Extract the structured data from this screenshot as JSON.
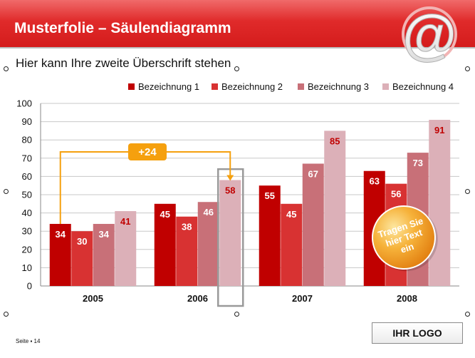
{
  "slide": {
    "title": "Musterfolie – Säulendiagramm",
    "subtitle": "Hier kann Ihre zweite Überschrift stehen",
    "footer": "Seite ▪ 14",
    "logo": "IHR LOGO",
    "badge_text": [
      "Tragen Sie",
      "hier Text",
      "ein"
    ],
    "callout": "+24",
    "icon": "at-sign-icon"
  },
  "colors": {
    "banner": "#e0262a",
    "series": [
      "#c00000",
      "#d83232",
      "#c87078",
      "#dcb0b8"
    ],
    "callout": "#f5a00e"
  },
  "chart_data": {
    "type": "bar",
    "categories": [
      "2005",
      "2006",
      "2007",
      "2008"
    ],
    "series": [
      {
        "name": "Bezeichnung 1",
        "values": [
          34,
          45,
          55,
          63
        ]
      },
      {
        "name": "Bezeichnung 2",
        "values": [
          30,
          38,
          45,
          56
        ]
      },
      {
        "name": "Bezeichnung 3",
        "values": [
          34,
          46,
          67,
          73
        ]
      },
      {
        "name": "Bezeichnung 4",
        "values": [
          41,
          58,
          85,
          91
        ]
      }
    ],
    "ylim": [
      0,
      100
    ],
    "yticks": [
      0,
      10,
      20,
      30,
      40,
      50,
      60,
      70,
      80,
      90,
      100
    ],
    "grid": true,
    "legend": "top-right"
  }
}
